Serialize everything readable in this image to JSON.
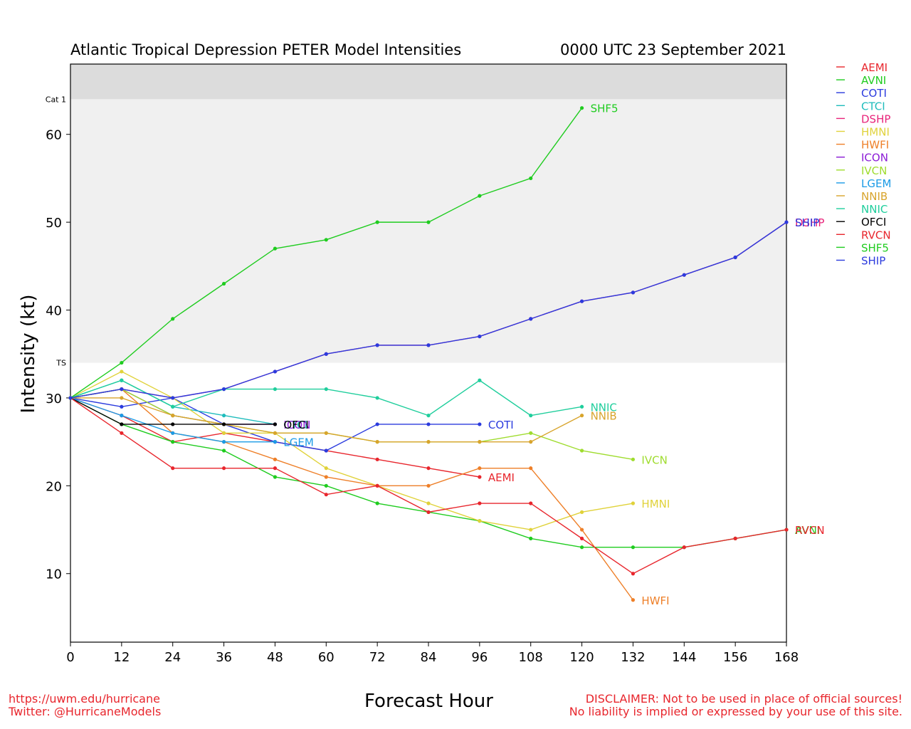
{
  "title_left": "Atlantic Tropical Depression PETER Model Intensities",
  "title_right": "0000 UTC 23 September 2021",
  "footer_left": [
    "https://uwm.edu/hurricane",
    "Twitter: @HurricaneModels"
  ],
  "footer_right": [
    "DISCLAIMER: Not to be used in place of official sources!",
    "No liability is implied or expressed by your use of this site."
  ],
  "chart_data": {
    "type": "line",
    "xlabel": "Forecast Hour",
    "ylabel": "Intensity (kt)",
    "xlim": [
      0,
      168
    ],
    "ylim": [
      2.2,
      68
    ],
    "x_ticks": [
      0,
      12,
      24,
      36,
      48,
      60,
      72,
      84,
      96,
      108,
      120,
      132,
      144,
      156,
      168
    ],
    "y_ticks": [
      10,
      20,
      30,
      40,
      50,
      60
    ],
    "thresholds": [
      {
        "label": "TS",
        "value": 34,
        "band_color": "#f0f0f0"
      },
      {
        "label": "Cat 1",
        "value": 64,
        "band_color": "#dcdcdc"
      }
    ],
    "series": [
      {
        "name": "AEMI",
        "color": "#e8262d",
        "label_side": "end",
        "points": [
          [
            0,
            30
          ],
          [
            12,
            28
          ],
          [
            24,
            25
          ],
          [
            36,
            26
          ],
          [
            48,
            25
          ],
          [
            60,
            24
          ],
          [
            72,
            23
          ],
          [
            84,
            22
          ],
          [
            96,
            21
          ]
        ]
      },
      {
        "name": "AVNI",
        "color": "#1fcc1f",
        "label_side": "end",
        "points": [
          [
            0,
            30
          ],
          [
            12,
            27
          ],
          [
            24,
            25
          ],
          [
            36,
            24
          ],
          [
            48,
            21
          ],
          [
            60,
            20
          ],
          [
            72,
            18
          ],
          [
            84,
            17
          ],
          [
            96,
            16
          ],
          [
            108,
            14
          ],
          [
            120,
            13
          ],
          [
            132,
            13
          ],
          [
            144,
            13
          ],
          [
            156,
            14
          ],
          [
            168,
            15
          ]
        ]
      },
      {
        "name": "COTI",
        "color": "#2b3bde",
        "label_side": "end",
        "points": [
          [
            0,
            30
          ],
          [
            12,
            29
          ],
          [
            24,
            30
          ],
          [
            36,
            27
          ],
          [
            48,
            25
          ],
          [
            60,
            24
          ],
          [
            72,
            27
          ],
          [
            84,
            27
          ],
          [
            96,
            27
          ]
        ]
      },
      {
        "name": "CTCI",
        "color": "#1fbcbc",
        "label_side": "end",
        "points": [
          [
            0,
            30
          ],
          [
            12,
            32
          ],
          [
            24,
            29
          ],
          [
            36,
            28
          ],
          [
            48,
            27
          ]
        ]
      },
      {
        "name": "DSHP",
        "color": "#e8247a",
        "label_side": "end",
        "points": [
          [
            0,
            30
          ],
          [
            12,
            31
          ],
          [
            24,
            30
          ],
          [
            36,
            31
          ],
          [
            48,
            33
          ],
          [
            60,
            35
          ],
          [
            72,
            36
          ],
          [
            84,
            36
          ],
          [
            96,
            37
          ],
          [
            108,
            39
          ],
          [
            120,
            41
          ],
          [
            132,
            42
          ],
          [
            144,
            44
          ],
          [
            156,
            46
          ],
          [
            168,
            50
          ]
        ]
      },
      {
        "name": "HMNI",
        "color": "#e0d23a",
        "label_side": "end",
        "points": [
          [
            0,
            30
          ],
          [
            12,
            33
          ],
          [
            24,
            30
          ],
          [
            36,
            26
          ],
          [
            48,
            26
          ],
          [
            60,
            22
          ],
          [
            72,
            20
          ],
          [
            84,
            18
          ],
          [
            96,
            16
          ],
          [
            108,
            15
          ],
          [
            120,
            17
          ],
          [
            132,
            18
          ]
        ]
      },
      {
        "name": "HWFI",
        "color": "#ee7f28",
        "label_side": "end",
        "points": [
          [
            0,
            30
          ],
          [
            12,
            31
          ],
          [
            24,
            26
          ],
          [
            36,
            25
          ],
          [
            48,
            23
          ],
          [
            60,
            21
          ],
          [
            72,
            20
          ],
          [
            84,
            20
          ],
          [
            96,
            22
          ],
          [
            108,
            22
          ],
          [
            120,
            15
          ],
          [
            132,
            7
          ]
        ]
      },
      {
        "name": "ICON",
        "color": "#8b1cd6",
        "label_side": "end",
        "points": [
          [
            0,
            30
          ],
          [
            12,
            31
          ],
          [
            24,
            28
          ],
          [
            36,
            27
          ],
          [
            48,
            27
          ]
        ]
      },
      {
        "name": "IVCN",
        "color": "#9fdc2e",
        "label_side": "end",
        "points": [
          [
            0,
            30
          ],
          [
            12,
            31
          ],
          [
            24,
            28
          ],
          [
            36,
            27
          ],
          [
            48,
            26
          ],
          [
            60,
            26
          ],
          [
            72,
            25
          ],
          [
            84,
            25
          ],
          [
            96,
            25
          ],
          [
            108,
            26
          ],
          [
            120,
            24
          ],
          [
            132,
            23
          ]
        ]
      },
      {
        "name": "LGEM",
        "color": "#1b9be6",
        "label_side": "end",
        "points": [
          [
            0,
            30
          ],
          [
            12,
            28
          ],
          [
            24,
            26
          ],
          [
            36,
            25
          ],
          [
            48,
            25
          ]
        ]
      },
      {
        "name": "NNIB",
        "color": "#d8a42c",
        "label_side": "end",
        "points": [
          [
            0,
            30
          ],
          [
            12,
            30
          ],
          [
            24,
            28
          ],
          [
            36,
            27
          ],
          [
            48,
            26
          ],
          [
            60,
            26
          ],
          [
            72,
            25
          ],
          [
            84,
            25
          ],
          [
            96,
            25
          ],
          [
            108,
            25
          ],
          [
            120,
            28
          ]
        ]
      },
      {
        "name": "NNIC",
        "color": "#1fce9c",
        "label_side": "end",
        "points": [
          [
            0,
            30
          ],
          [
            12,
            32
          ],
          [
            24,
            29
          ],
          [
            36,
            31
          ],
          [
            48,
            31
          ],
          [
            60,
            31
          ],
          [
            72,
            30
          ],
          [
            84,
            28
          ],
          [
            96,
            32
          ],
          [
            108,
            28
          ],
          [
            120,
            29
          ]
        ]
      },
      {
        "name": "OFCI",
        "color": "#000000",
        "label_side": "end",
        "points": [
          [
            0,
            30
          ],
          [
            12,
            27
          ],
          [
            24,
            27
          ],
          [
            36,
            27
          ],
          [
            48,
            27
          ]
        ]
      },
      {
        "name": "RVCN",
        "color": "#e8262d",
        "label_side": "end",
        "points": [
          [
            0,
            30
          ],
          [
            12,
            26
          ],
          [
            24,
            22
          ],
          [
            36,
            22
          ],
          [
            48,
            22
          ],
          [
            60,
            19
          ],
          [
            72,
            20
          ],
          [
            84,
            17
          ],
          [
            96,
            18
          ],
          [
            108,
            18
          ],
          [
            120,
            14
          ],
          [
            132,
            10
          ],
          [
            144,
            13
          ],
          [
            156,
            14
          ],
          [
            168,
            15
          ]
        ]
      },
      {
        "name": "SHF5",
        "color": "#1fcc1f",
        "label_side": "end",
        "points": [
          [
            0,
            30
          ],
          [
            12,
            34
          ],
          [
            24,
            39
          ],
          [
            36,
            43
          ],
          [
            48,
            47
          ],
          [
            60,
            48
          ],
          [
            72,
            50
          ],
          [
            84,
            50
          ],
          [
            96,
            53
          ],
          [
            108,
            55
          ],
          [
            120,
            63
          ]
        ]
      },
      {
        "name": "SHIP",
        "color": "#2b3bde",
        "label_side": "end",
        "points": [
          [
            0,
            30
          ],
          [
            12,
            31
          ],
          [
            24,
            30
          ],
          [
            36,
            31
          ],
          [
            48,
            33
          ],
          [
            60,
            35
          ],
          [
            72,
            36
          ],
          [
            84,
            36
          ],
          [
            96,
            37
          ],
          [
            108,
            39
          ],
          [
            120,
            41
          ],
          [
            132,
            42
          ],
          [
            144,
            44
          ],
          [
            156,
            46
          ],
          [
            168,
            50
          ]
        ]
      }
    ],
    "legend": {
      "placement": "right",
      "entries": [
        "AEMI",
        "AVNI",
        "COTI",
        "CTCI",
        "DSHP",
        "HMNI",
        "HWFI",
        "ICON",
        "IVCN",
        "LGEM",
        "NNIB",
        "NNIC",
        "OFCI",
        "RVCN",
        "SHF5",
        "SHIP"
      ]
    }
  }
}
